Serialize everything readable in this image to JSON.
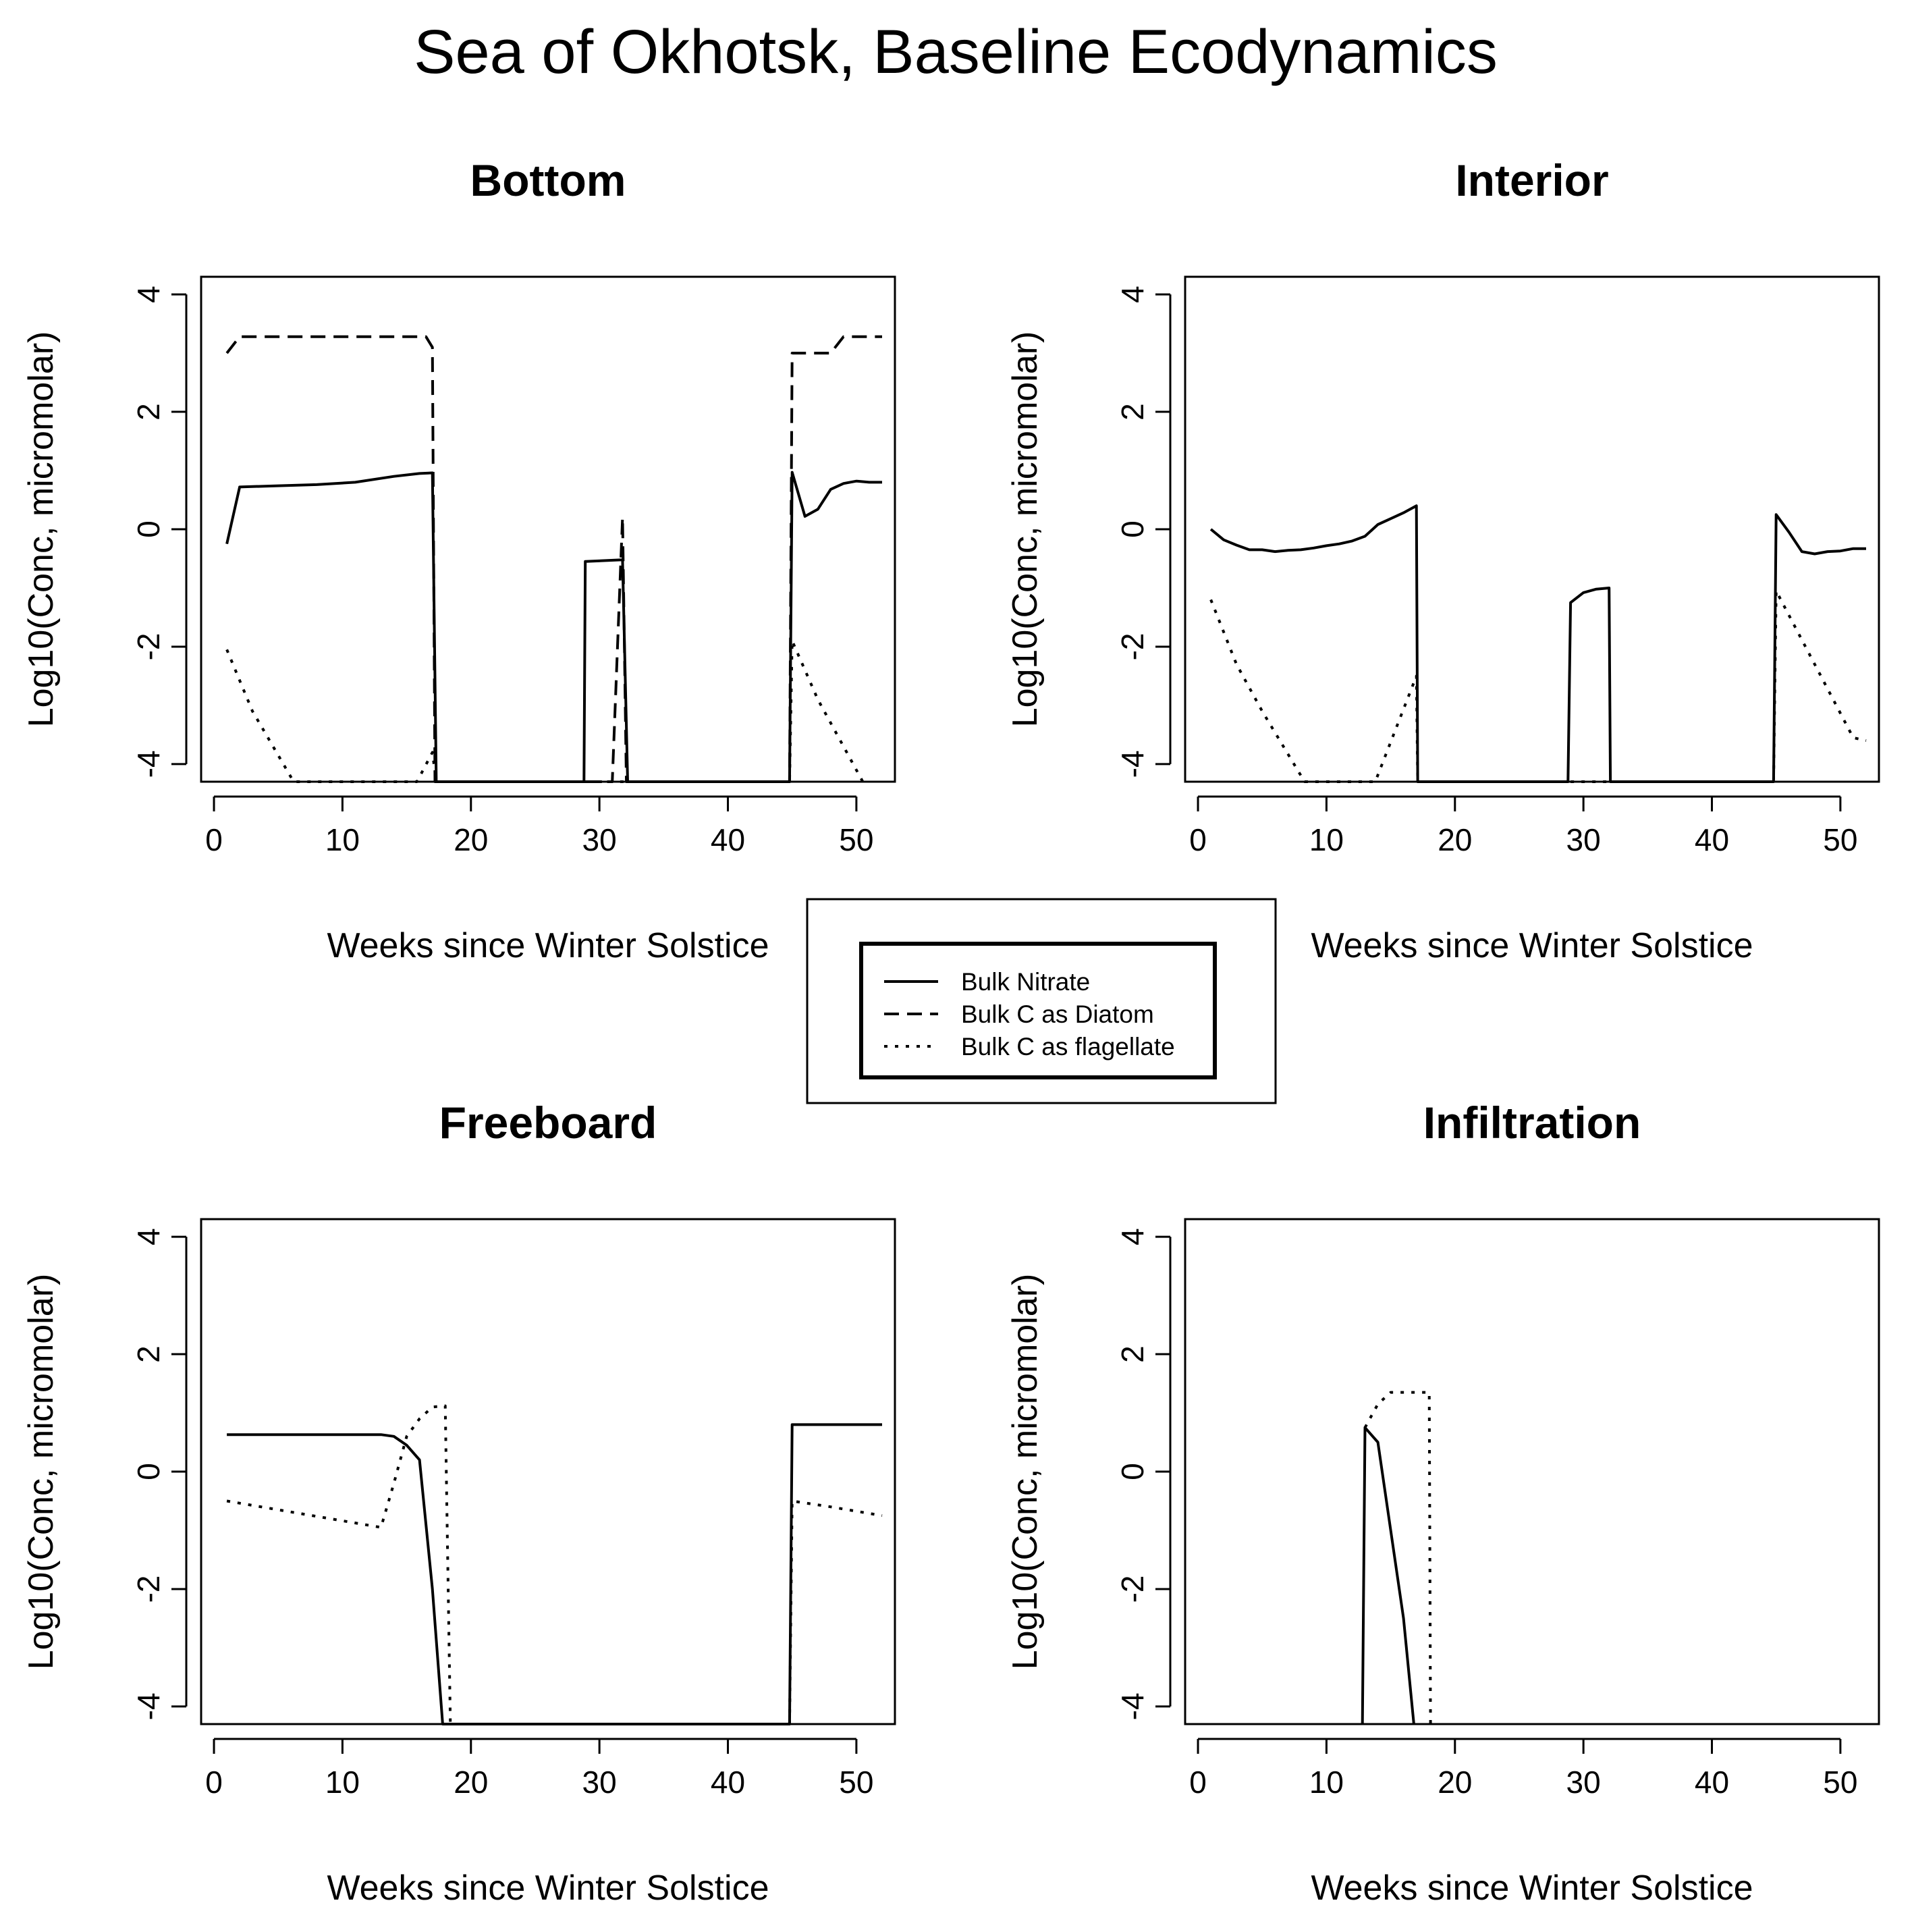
{
  "figure": {
    "title": "Sea of Okhotsk, Baseline Ecodynamics"
  },
  "legend": {
    "entries": [
      {
        "label": "Bulk Nitrate",
        "style": "solid"
      },
      {
        "label": "Bulk C as Diatom",
        "style": "dashed"
      },
      {
        "label": "Bulk C as flagellate",
        "style": "dotted"
      }
    ]
  },
  "chart_data": [
    {
      "type": "line",
      "title": "Bottom",
      "xlabel": "Weeks since Winter Solstice",
      "ylabel": "Log10(Conc, micromolar)",
      "xlim": [
        -1,
        53
      ],
      "ylim": [
        -4.3,
        4.3
      ],
      "xticks": [
        0,
        10,
        20,
        30,
        40,
        50
      ],
      "yticks": [
        -4,
        -2,
        0,
        2,
        4
      ],
      "series": [
        {
          "name": "Bulk Nitrate",
          "style": "solid",
          "points": [
            [
              1,
              -0.25
            ],
            [
              2,
              0.72
            ],
            [
              5,
              0.74
            ],
            [
              8,
              0.76
            ],
            [
              11,
              0.8
            ],
            [
              14,
              0.9
            ],
            [
              16,
              0.95
            ],
            [
              17,
              0.96
            ],
            [
              17.3,
              -4.3
            ],
            [
              28.8,
              -4.3
            ],
            [
              28.9,
              -0.55
            ],
            [
              31.8,
              -0.52
            ],
            [
              32.2,
              -4.3
            ],
            [
              44.8,
              -4.3
            ],
            [
              45,
              0.97
            ],
            [
              46,
              0.22
            ],
            [
              47,
              0.34
            ],
            [
              48,
              0.68
            ],
            [
              49,
              0.78
            ],
            [
              50,
              0.82
            ],
            [
              51,
              0.8
            ],
            [
              52,
              0.8
            ]
          ]
        },
        {
          "name": "Bulk C as Diatom",
          "style": "dashed",
          "points": [
            [
              1,
              3.0
            ],
            [
              2,
              3.28
            ],
            [
              10,
              3.28
            ],
            [
              16.5,
              3.28
            ],
            [
              17,
              3.1
            ],
            [
              17.2,
              -4.3
            ],
            [
              31,
              -4.3
            ],
            [
              31.8,
              0.2
            ],
            [
              32.1,
              -4.3
            ],
            [
              44.8,
              -4.3
            ],
            [
              45,
              3.0
            ],
            [
              48,
              3.0
            ],
            [
              49,
              3.28
            ],
            [
              52,
              3.28
            ]
          ]
        },
        {
          "name": "Bulk C as flagellate",
          "style": "dotted",
          "points": [
            [
              1,
              -2.05
            ],
            [
              3,
              -3.1
            ],
            [
              6.2,
              -4.3
            ],
            [
              15.8,
              -4.3
            ],
            [
              17,
              -3.8
            ],
            [
              17.3,
              -4.3
            ],
            [
              44.8,
              -4.3
            ],
            [
              45,
              -1.9
            ],
            [
              47,
              -2.9
            ],
            [
              50.5,
              -4.3
            ]
          ]
        }
      ]
    },
    {
      "type": "line",
      "title": "Interior",
      "xlabel": "Weeks since Winter Solstice",
      "ylabel": "Log10(Conc, micromolar)",
      "xlim": [
        -1,
        53
      ],
      "ylim": [
        -4.3,
        4.3
      ],
      "xticks": [
        0,
        10,
        20,
        30,
        40,
        50
      ],
      "yticks": [
        -4,
        -2,
        0,
        2,
        4
      ],
      "series": [
        {
          "name": "Bulk Nitrate",
          "style": "solid",
          "points": [
            [
              1,
              0.0
            ],
            [
              2,
              -0.18
            ],
            [
              3,
              -0.27
            ],
            [
              4,
              -0.35
            ],
            [
              5,
              -0.35
            ],
            [
              6,
              -0.38
            ],
            [
              7,
              -0.36
            ],
            [
              8,
              -0.35
            ],
            [
              9,
              -0.32
            ],
            [
              10,
              -0.28
            ],
            [
              11,
              -0.25
            ],
            [
              12,
              -0.2
            ],
            [
              13,
              -0.12
            ],
            [
              14,
              0.08
            ],
            [
              15,
              0.18
            ],
            [
              16,
              0.28
            ],
            [
              17,
              0.4
            ],
            [
              17.1,
              -4.3
            ],
            [
              28.8,
              -4.3
            ],
            [
              29,
              -1.25
            ],
            [
              30,
              -1.08
            ],
            [
              31,
              -1.02
            ],
            [
              32,
              -1.0
            ],
            [
              32.1,
              -4.3
            ],
            [
              44.8,
              -4.3
            ],
            [
              45,
              0.25
            ],
            [
              46,
              -0.05
            ],
            [
              47,
              -0.38
            ],
            [
              48,
              -0.42
            ],
            [
              49,
              -0.38
            ],
            [
              50,
              -0.37
            ],
            [
              51,
              -0.33
            ],
            [
              52,
              -0.33
            ]
          ]
        },
        {
          "name": "Bulk C as flagellate",
          "style": "dotted",
          "points": [
            [
              1,
              -1.2
            ],
            [
              3,
              -2.3
            ],
            [
              5,
              -3.1
            ],
            [
              8.3,
              -4.3
            ],
            [
              13.8,
              -4.3
            ],
            [
              17,
              -2.5
            ],
            [
              17.1,
              -4.3
            ],
            [
              44.8,
              -4.3
            ],
            [
              45,
              -1.05
            ],
            [
              48,
              -2.3
            ],
            [
              51,
              -3.55
            ],
            [
              52,
              -3.6
            ]
          ]
        }
      ]
    },
    {
      "type": "line",
      "title": "Freeboard",
      "xlabel": "Weeks since Winter Solstice",
      "ylabel": "Log10(Conc, micromolar)",
      "xlim": [
        -1,
        53
      ],
      "ylim": [
        -4.3,
        4.3
      ],
      "xticks": [
        0,
        10,
        20,
        30,
        40,
        50
      ],
      "yticks": [
        -4,
        -2,
        0,
        2,
        4
      ],
      "series": [
        {
          "name": "Bulk Nitrate",
          "style": "solid",
          "points": [
            [
              1,
              0.63
            ],
            [
              10,
              0.63
            ],
            [
              13,
              0.63
            ],
            [
              14,
              0.6
            ],
            [
              15,
              0.45
            ],
            [
              16,
              0.2
            ],
            [
              17,
              -2.0
            ],
            [
              17.8,
              -4.3
            ],
            [
              44.8,
              -4.3
            ],
            [
              45,
              0.8
            ],
            [
              52,
              0.8
            ]
          ]
        },
        {
          "name": "Bulk C as flagellate",
          "style": "dotted",
          "points": [
            [
              1,
              -0.5
            ],
            [
              13,
              -0.95
            ],
            [
              14,
              -0.2
            ],
            [
              15,
              0.6
            ],
            [
              16,
              0.9
            ],
            [
              17,
              1.1
            ],
            [
              18,
              1.12
            ],
            [
              18.4,
              -4.3
            ],
            [
              44.8,
              -4.3
            ],
            [
              45,
              -0.5
            ],
            [
              48,
              -0.6
            ],
            [
              52,
              -0.75
            ]
          ]
        }
      ]
    },
    {
      "type": "line",
      "title": "Infiltration",
      "xlabel": "Weeks since Winter Solstice",
      "ylabel": "Log10(Conc, micromolar)",
      "xlim": [
        -1,
        53
      ],
      "ylim": [
        -4.3,
        4.3
      ],
      "xticks": [
        0,
        10,
        20,
        30,
        40,
        50
      ],
      "yticks": [
        -4,
        -2,
        0,
        2,
        4
      ],
      "series": [
        {
          "name": "Bulk Nitrate",
          "style": "solid",
          "points": [
            [
              12.8,
              -4.3
            ],
            [
              13,
              0.75
            ],
            [
              14,
              0.5
            ],
            [
              15,
              -1.0
            ],
            [
              16,
              -2.5
            ],
            [
              16.8,
              -4.3
            ]
          ]
        },
        {
          "name": "Bulk C as flagellate",
          "style": "dotted",
          "points": [
            [
              13,
              0.75
            ],
            [
              14,
              1.15
            ],
            [
              15,
              1.35
            ],
            [
              17,
              1.35
            ],
            [
              18,
              1.35
            ],
            [
              18.1,
              -4.3
            ]
          ]
        }
      ]
    }
  ]
}
